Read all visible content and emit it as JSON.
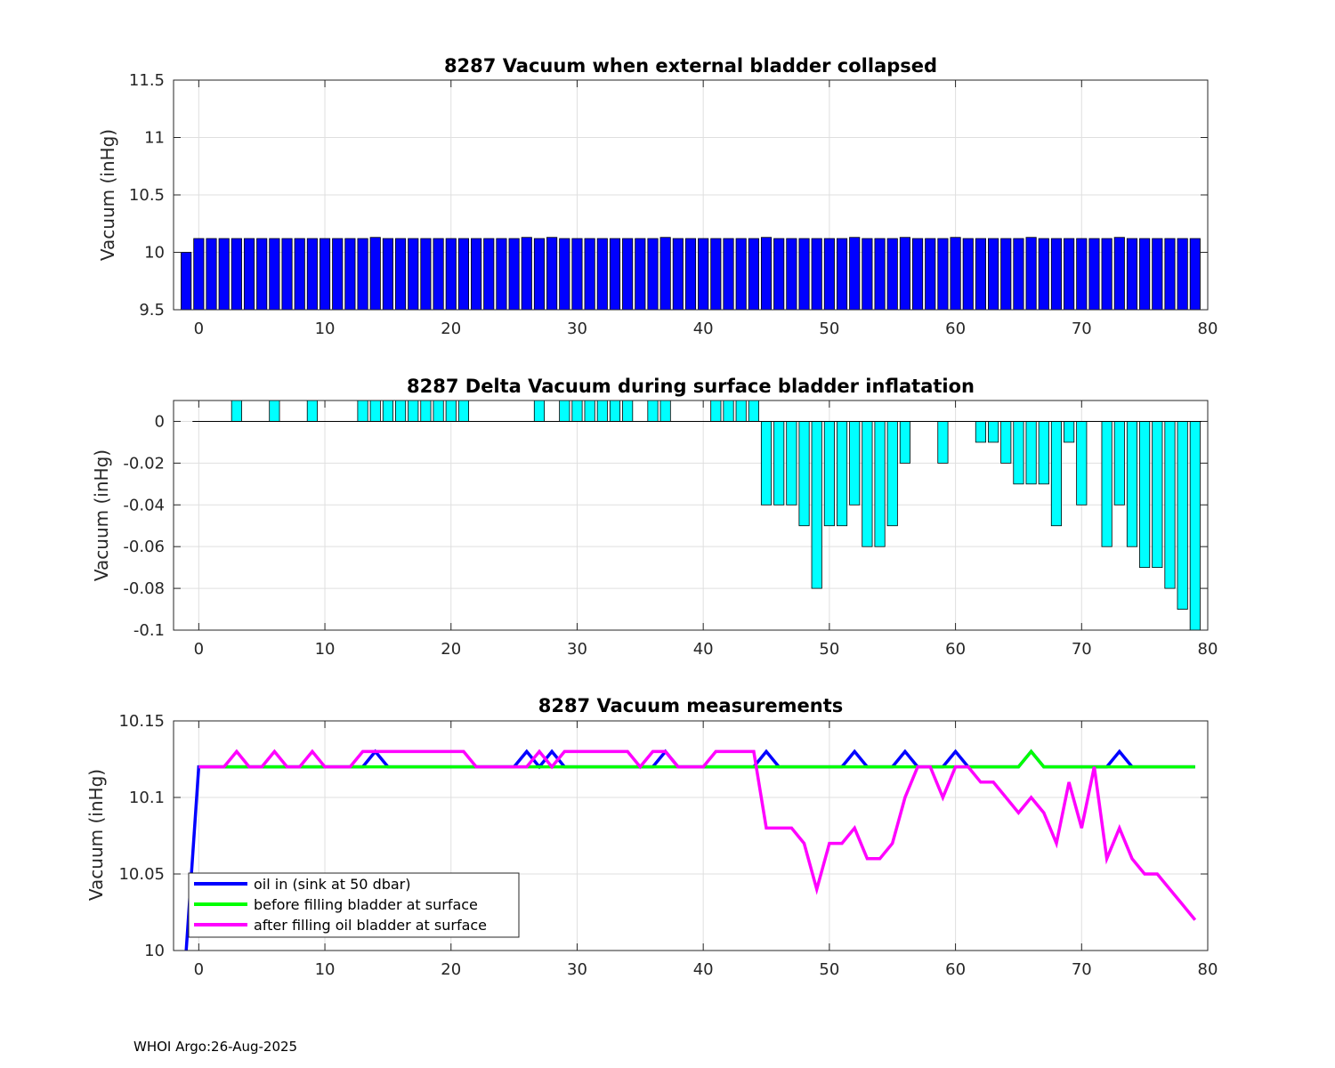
{
  "footer": "WHOI Argo:26-Aug-2025",
  "chart_data": [
    {
      "type": "bar",
      "title": "8287 Vacuum when external bladder collapsed",
      "ylabel": "Vacuum (inHg)",
      "xlim": [
        -2,
        80
      ],
      "ylim": [
        9.5,
        11.5
      ],
      "xticks": [
        "0",
        "10",
        "20",
        "30",
        "40",
        "50",
        "60",
        "70",
        "80"
      ],
      "yticks": [
        "9.5",
        "10",
        "10.5",
        "11",
        "11.5"
      ],
      "grid": true,
      "color": "#0000ff",
      "x": [
        -1,
        0,
        1,
        2,
        3,
        4,
        5,
        6,
        7,
        8,
        9,
        10,
        11,
        12,
        13,
        14,
        15,
        16,
        17,
        18,
        19,
        20,
        21,
        22,
        23,
        24,
        25,
        26,
        27,
        28,
        29,
        30,
        31,
        32,
        33,
        34,
        35,
        36,
        37,
        38,
        39,
        40,
        41,
        42,
        43,
        44,
        45,
        46,
        47,
        48,
        49,
        50,
        51,
        52,
        53,
        54,
        55,
        56,
        57,
        58,
        59,
        60,
        61,
        62,
        63,
        64,
        65,
        66,
        67,
        68,
        69,
        70,
        71,
        72,
        73,
        74,
        75,
        76,
        77,
        78,
        79
      ],
      "values": [
        10,
        10.12,
        10.12,
        10.12,
        10.12,
        10.12,
        10.12,
        10.12,
        10.12,
        10.12,
        10.12,
        10.12,
        10.12,
        10.12,
        10.12,
        10.13,
        10.12,
        10.12,
        10.12,
        10.12,
        10.12,
        10.12,
        10.12,
        10.12,
        10.12,
        10.12,
        10.12,
        10.13,
        10.12,
        10.13,
        10.12,
        10.12,
        10.12,
        10.12,
        10.12,
        10.12,
        10.12,
        10.12,
        10.13,
        10.12,
        10.12,
        10.12,
        10.12,
        10.12,
        10.12,
        10.12,
        10.13,
        10.12,
        10.12,
        10.12,
        10.12,
        10.12,
        10.12,
        10.13,
        10.12,
        10.12,
        10.12,
        10.13,
        10.12,
        10.12,
        10.12,
        10.13,
        10.12,
        10.12,
        10.12,
        10.12,
        10.12,
        10.13,
        10.12,
        10.12,
        10.12,
        10.12,
        10.12,
        10.12,
        10.13,
        10.12,
        10.12,
        10.12,
        10.12,
        10.12,
        10.12
      ]
    },
    {
      "type": "bar",
      "title": "8287 Delta Vacuum during surface bladder inflatation",
      "ylabel": "Vacuum (inHg)",
      "xlim": [
        -2,
        80
      ],
      "ylim": [
        -0.1,
        0.01
      ],
      "xticks": [
        "0",
        "10",
        "20",
        "30",
        "40",
        "50",
        "60",
        "70",
        "80"
      ],
      "yticks": [
        "-0.1",
        "-0.08",
        "-0.06",
        "-0.04",
        "-0.02",
        "0"
      ],
      "grid": true,
      "color": "#00ffff",
      "x": [
        0,
        1,
        2,
        3,
        4,
        5,
        6,
        7,
        8,
        9,
        10,
        11,
        12,
        13,
        14,
        15,
        16,
        17,
        18,
        19,
        20,
        21,
        22,
        23,
        24,
        25,
        26,
        27,
        28,
        29,
        30,
        31,
        32,
        33,
        34,
        35,
        36,
        37,
        38,
        39,
        40,
        41,
        42,
        43,
        44,
        45,
        46,
        47,
        48,
        49,
        50,
        51,
        52,
        53,
        54,
        55,
        56,
        57,
        58,
        59,
        60,
        61,
        62,
        63,
        64,
        65,
        66,
        67,
        68,
        69,
        70,
        71,
        72,
        73,
        74,
        75,
        76,
        77,
        78,
        79
      ],
      "values": [
        0,
        0,
        0,
        0.01,
        0,
        0,
        0.01,
        0,
        0,
        0.01,
        0,
        0,
        0,
        0.01,
        0.01,
        0.01,
        0.01,
        0.01,
        0.01,
        0.01,
        0.01,
        0.01,
        0,
        0,
        0,
        0,
        0,
        0.01,
        0,
        0.01,
        0.01,
        0.01,
        0.01,
        0.01,
        0.01,
        0,
        0.01,
        0.01,
        0,
        0,
        0,
        0.01,
        0.01,
        0.01,
        0.01,
        -0.04,
        -0.04,
        -0.04,
        -0.05,
        -0.08,
        -0.05,
        -0.05,
        -0.04,
        -0.06,
        -0.06,
        -0.05,
        -0.02,
        0,
        0,
        -0.02,
        0,
        0,
        -0.01,
        -0.01,
        -0.02,
        -0.03,
        -0.03,
        -0.03,
        -0.05,
        -0.01,
        -0.04,
        0,
        -0.06,
        -0.04,
        -0.06,
        -0.07,
        -0.07,
        -0.08,
        -0.09,
        -0.1
      ]
    },
    {
      "type": "line",
      "title": "8287 Vacuum measurements",
      "ylabel": "Vacuum (inHg)",
      "xlim": [
        -2,
        80
      ],
      "ylim": [
        10,
        10.15
      ],
      "xticks": [
        "0",
        "10",
        "20",
        "30",
        "40",
        "50",
        "60",
        "70",
        "80"
      ],
      "yticks": [
        "10",
        "10.05",
        "10.1",
        "10.15"
      ],
      "grid": true,
      "legend_position": "bottom-left",
      "series": [
        {
          "name": "oil in (sink at 50 dbar)",
          "color": "#0000ff",
          "x": [
            -1,
            0,
            1,
            2,
            3,
            4,
            5,
            6,
            7,
            8,
            9,
            10,
            11,
            12,
            13,
            14,
            15,
            16,
            17,
            18,
            19,
            20,
            21,
            22,
            23,
            24,
            25,
            26,
            27,
            28,
            29,
            30,
            31,
            32,
            33,
            34,
            35,
            36,
            37,
            38,
            39,
            40,
            41,
            42,
            43,
            44,
            45,
            46,
            47,
            48,
            49,
            50,
            51,
            52,
            53,
            54,
            55,
            56,
            57,
            58,
            59,
            60,
            61,
            62,
            63,
            64,
            65,
            66,
            67,
            68,
            69,
            70,
            71,
            72,
            73,
            74,
            75,
            76,
            77,
            78,
            79
          ],
          "values": [
            10,
            10.12,
            10.12,
            10.12,
            10.12,
            10.12,
            10.12,
            10.12,
            10.12,
            10.12,
            10.12,
            10.12,
            10.12,
            10.12,
            10.12,
            10.13,
            10.12,
            10.12,
            10.12,
            10.12,
            10.12,
            10.12,
            10.12,
            10.12,
            10.12,
            10.12,
            10.12,
            10.13,
            10.12,
            10.13,
            10.12,
            10.12,
            10.12,
            10.12,
            10.12,
            10.12,
            10.12,
            10.12,
            10.13,
            10.12,
            10.12,
            10.12,
            10.12,
            10.12,
            10.12,
            10.12,
            10.13,
            10.12,
            10.12,
            10.12,
            10.12,
            10.12,
            10.12,
            10.13,
            10.12,
            10.12,
            10.12,
            10.13,
            10.12,
            10.12,
            10.12,
            10.13,
            10.12,
            10.12,
            10.12,
            10.12,
            10.12,
            10.13,
            10.12,
            10.12,
            10.12,
            10.12,
            10.12,
            10.12,
            10.13,
            10.12,
            10.12,
            10.12,
            10.12,
            10.12,
            10.12
          ]
        },
        {
          "name": "before filling bladder at surface",
          "color": "#00ff00",
          "x": [
            0,
            1,
            2,
            3,
            4,
            5,
            6,
            7,
            8,
            9,
            10,
            11,
            12,
            13,
            14,
            15,
            16,
            17,
            18,
            19,
            20,
            21,
            22,
            23,
            24,
            25,
            26,
            27,
            28,
            29,
            30,
            31,
            32,
            33,
            34,
            35,
            36,
            37,
            38,
            39,
            40,
            41,
            42,
            43,
            44,
            45,
            46,
            47,
            48,
            49,
            50,
            51,
            52,
            53,
            54,
            55,
            56,
            57,
            58,
            59,
            60,
            61,
            62,
            63,
            64,
            65,
            66,
            67,
            68,
            69,
            70,
            71,
            72,
            73,
            74,
            75,
            76,
            77,
            78,
            79
          ],
          "values": [
            10.12,
            10.12,
            10.12,
            10.12,
            10.12,
            10.12,
            10.12,
            10.12,
            10.12,
            10.12,
            10.12,
            10.12,
            10.12,
            10.12,
            10.12,
            10.12,
            10.12,
            10.12,
            10.12,
            10.12,
            10.12,
            10.12,
            10.12,
            10.12,
            10.12,
            10.12,
            10.12,
            10.12,
            10.12,
            10.12,
            10.12,
            10.12,
            10.12,
            10.12,
            10.12,
            10.12,
            10.12,
            10.12,
            10.12,
            10.12,
            10.12,
            10.12,
            10.12,
            10.12,
            10.12,
            10.12,
            10.12,
            10.12,
            10.12,
            10.12,
            10.12,
            10.12,
            10.12,
            10.12,
            10.12,
            10.12,
            10.12,
            10.12,
            10.12,
            10.12,
            10.12,
            10.12,
            10.12,
            10.12,
            10.12,
            10.12,
            10.13,
            10.12,
            10.12,
            10.12,
            10.12,
            10.12,
            10.12,
            10.12,
            10.12,
            10.12,
            10.12,
            10.12,
            10.12,
            10.12
          ]
        },
        {
          "name": "after filling oil bladder at surface",
          "color": "#ff00ff",
          "x": [
            0,
            1,
            2,
            3,
            4,
            5,
            6,
            7,
            8,
            9,
            10,
            11,
            12,
            13,
            14,
            15,
            16,
            17,
            18,
            19,
            20,
            21,
            22,
            23,
            24,
            25,
            26,
            27,
            28,
            29,
            30,
            31,
            32,
            33,
            34,
            35,
            36,
            37,
            38,
            39,
            40,
            41,
            42,
            43,
            44,
            45,
            46,
            47,
            48,
            49,
            50,
            51,
            52,
            53,
            54,
            55,
            56,
            57,
            58,
            59,
            60,
            61,
            62,
            63,
            64,
            65,
            66,
            67,
            68,
            69,
            70,
            71,
            72,
            73,
            74,
            75,
            76,
            77,
            78,
            79
          ],
          "values": [
            10.12,
            10.12,
            10.12,
            10.13,
            10.12,
            10.12,
            10.13,
            10.12,
            10.12,
            10.13,
            10.12,
            10.12,
            10.12,
            10.13,
            10.13,
            10.13,
            10.13,
            10.13,
            10.13,
            10.13,
            10.13,
            10.13,
            10.12,
            10.12,
            10.12,
            10.12,
            10.12,
            10.13,
            10.12,
            10.13,
            10.13,
            10.13,
            10.13,
            10.13,
            10.13,
            10.12,
            10.13,
            10.13,
            10.12,
            10.12,
            10.12,
            10.13,
            10.13,
            10.13,
            10.13,
            10.08,
            10.08,
            10.08,
            10.07,
            10.04,
            10.07,
            10.07,
            10.08,
            10.06,
            10.06,
            10.07,
            10.1,
            10.12,
            10.12,
            10.1,
            10.12,
            10.12,
            10.11,
            10.11,
            10.1,
            10.09,
            10.1,
            10.09,
            10.07,
            10.11,
            10.08,
            10.12,
            10.06,
            10.08,
            10.06,
            10.05,
            10.05,
            10.04,
            10.03,
            10.02
          ]
        }
      ]
    }
  ]
}
